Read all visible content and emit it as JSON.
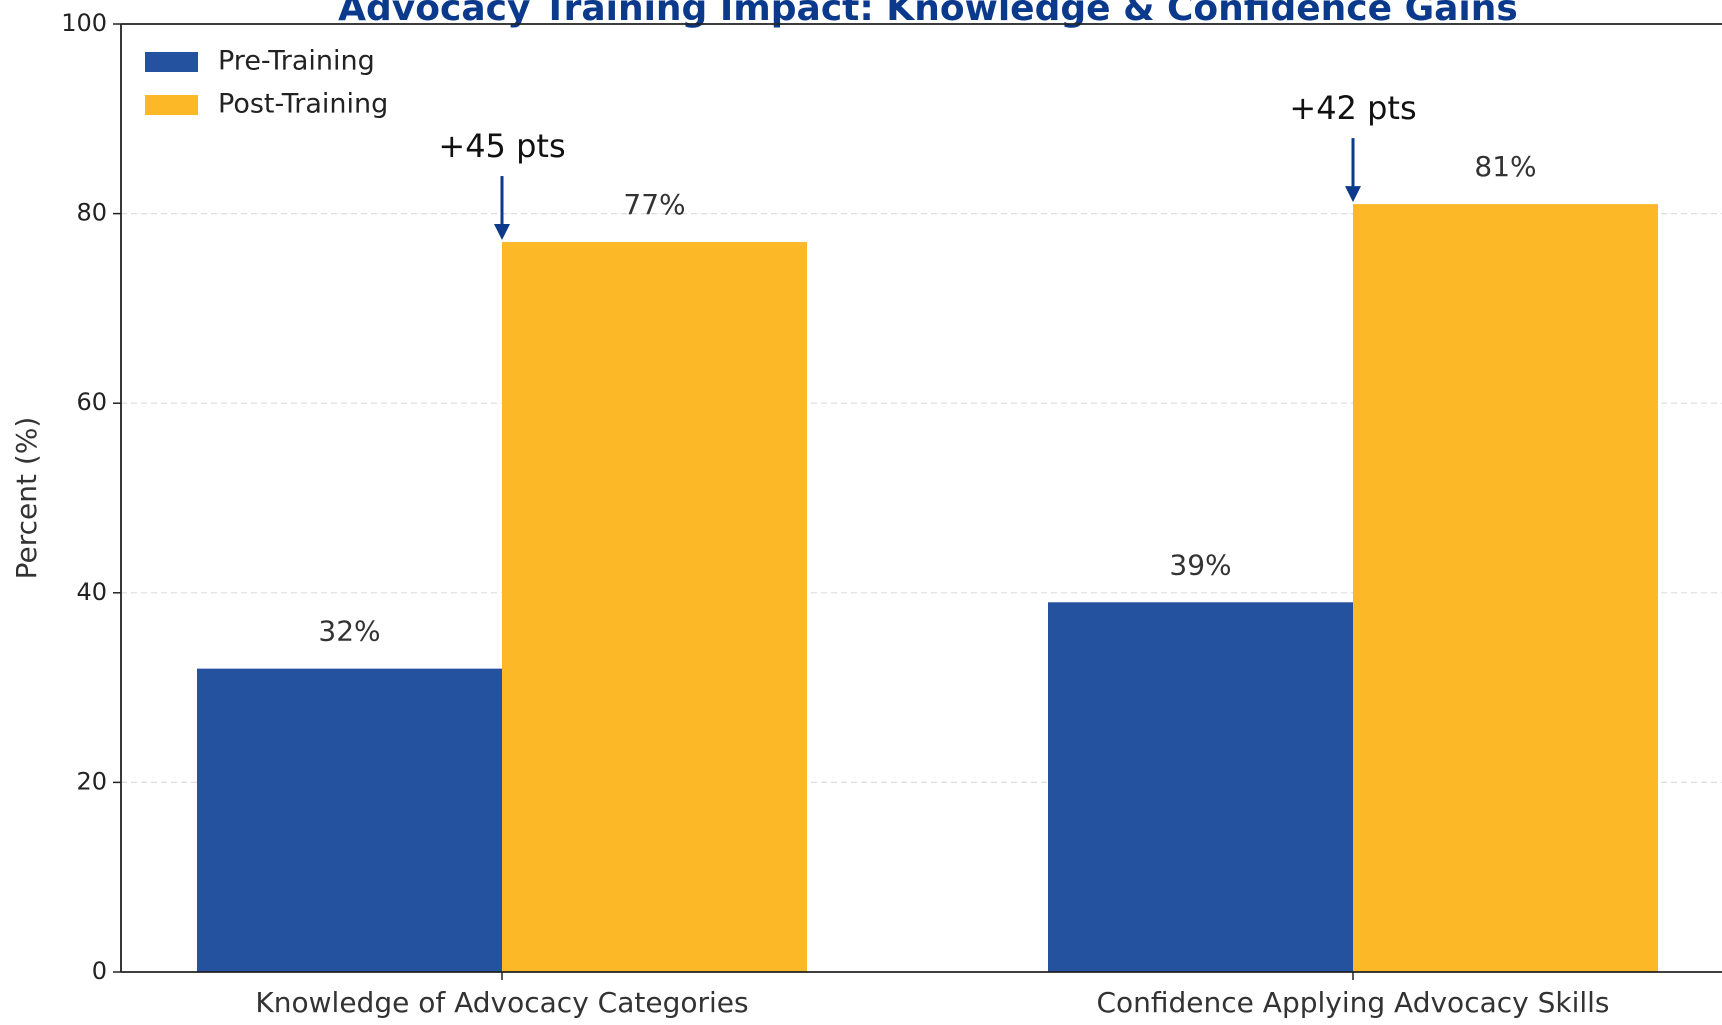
{
  "chart_data": {
    "type": "bar",
    "title": "Advocacy Training Impact: Knowledge & Confidence Gains",
    "ylabel": "Percent (%)",
    "categories": [
      "Knowledge of Advocacy Categories",
      "Confidence Applying Advocacy Skills"
    ],
    "series": [
      {
        "name": "Pre-Training",
        "color": "#25529e",
        "values": [
          32,
          39
        ],
        "value_labels": [
          "32%",
          "39%"
        ]
      },
      {
        "name": "Post-Training",
        "color": "#fdb827",
        "values": [
          77,
          81
        ],
        "value_labels": [
          "77%",
          "81%"
        ]
      }
    ],
    "annotations": [
      "+45 pts",
      "+42 pts"
    ],
    "ylim": [
      0,
      100
    ],
    "yticks": [
      0,
      20,
      40,
      60,
      80,
      100
    ],
    "grid": true,
    "legend": "upper left"
  }
}
